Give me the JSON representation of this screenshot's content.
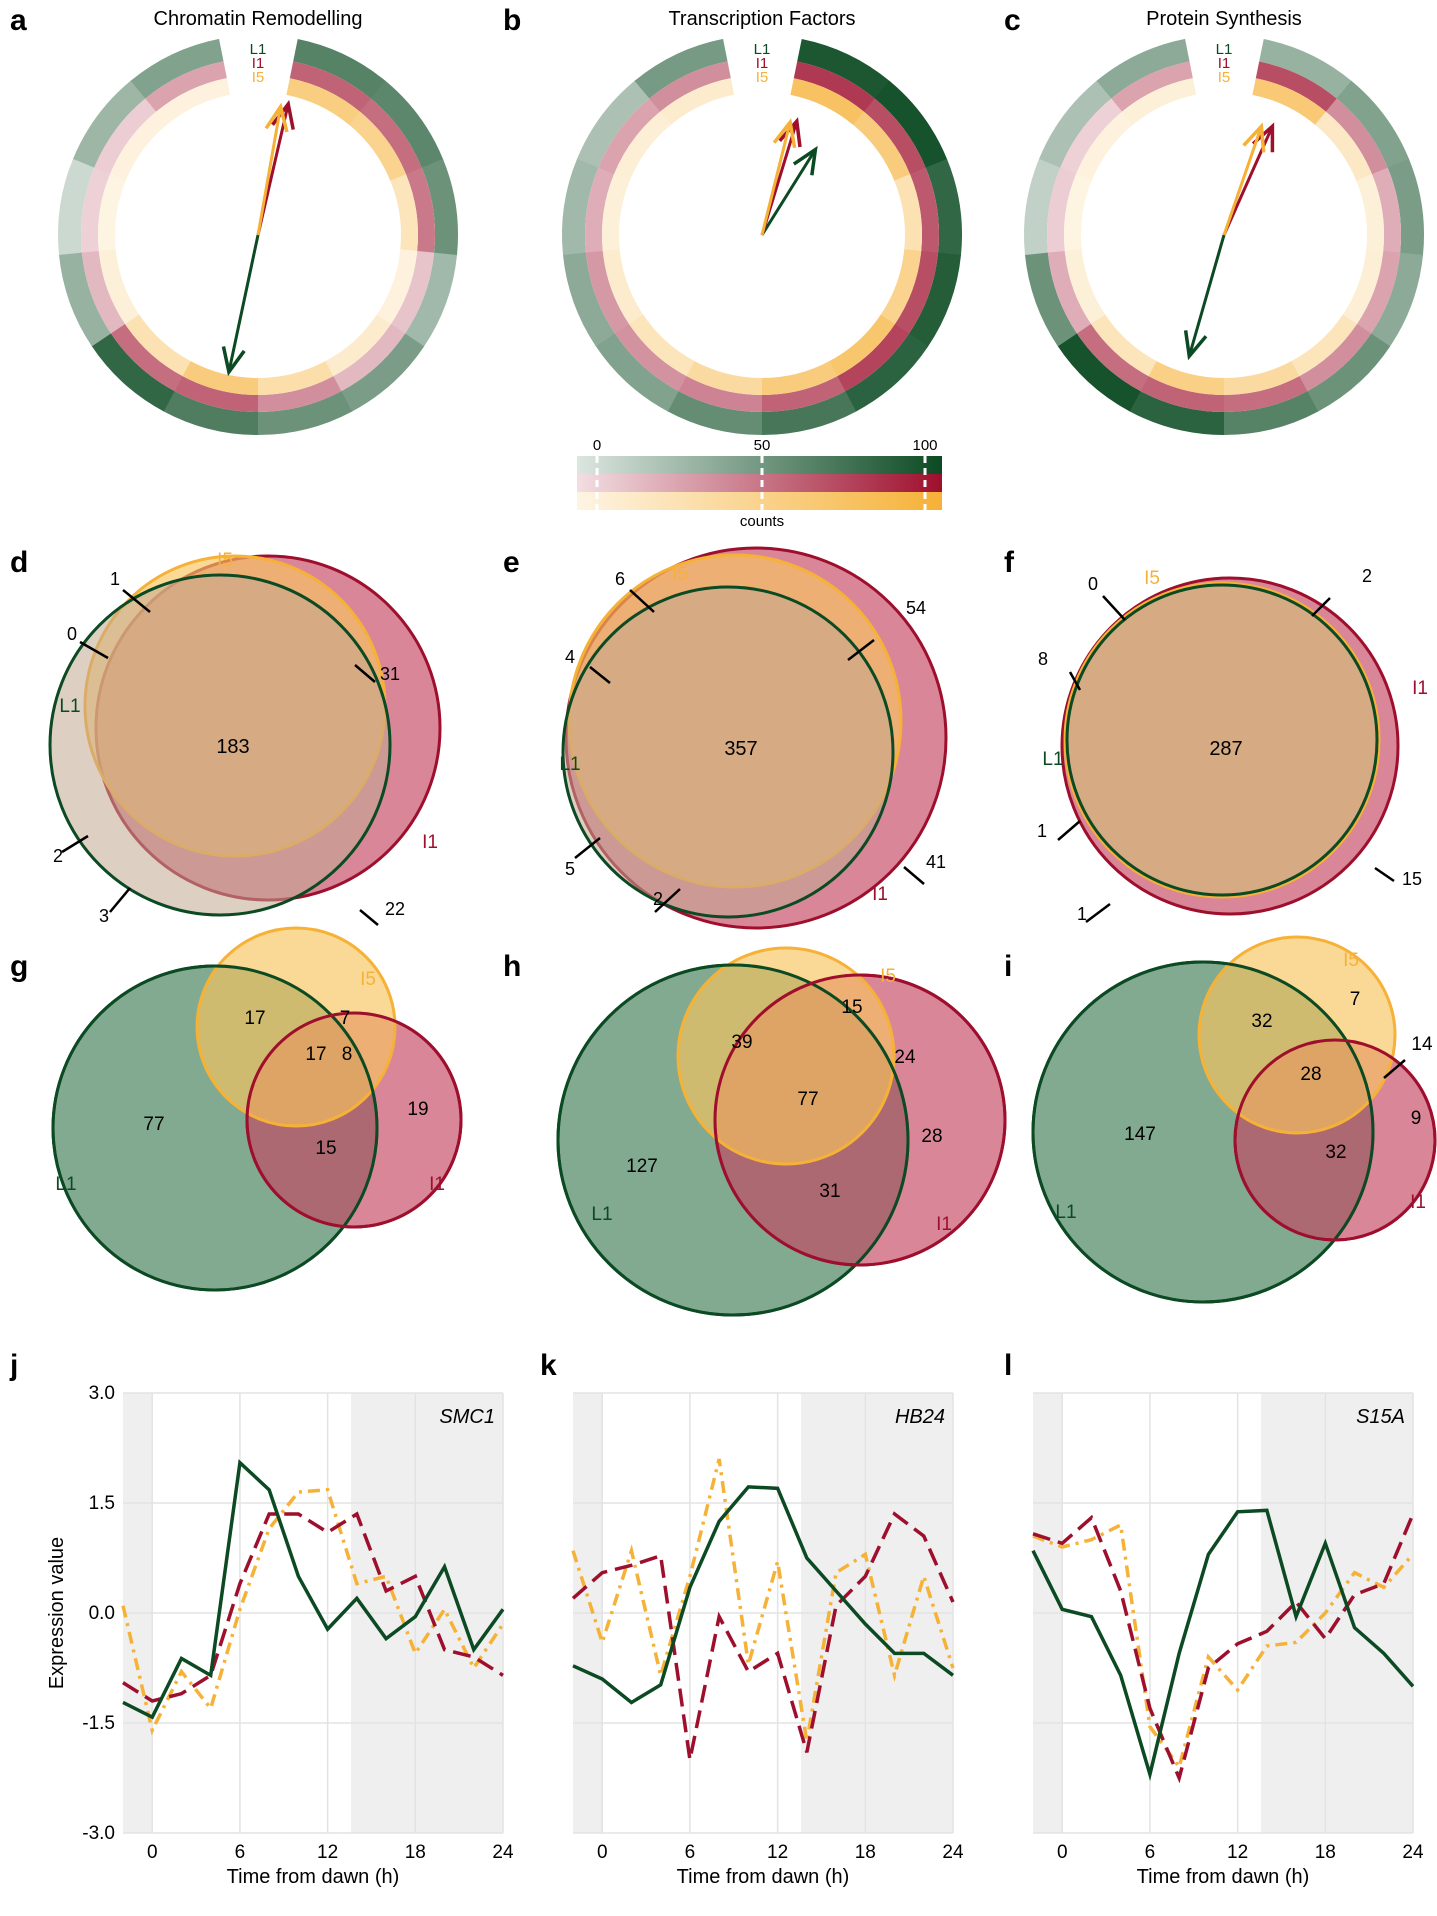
{
  "colors": {
    "L1": "#0b4a22",
    "I1": "#9e0f2d",
    "I5": "#f6b137",
    "L1_fill": "#3c7a52",
    "I1_fill": "#c44661",
    "I5_fill": "#f8c864"
  },
  "panels": {
    "a": {
      "letter": "a",
      "title": "Chromatin Remodelling"
    },
    "b": {
      "letter": "b",
      "title": "Transcription Factors"
    },
    "c": {
      "letter": "c",
      "title": "Protein Synthesis"
    },
    "d": {
      "letter": "d"
    },
    "e": {
      "letter": "e"
    },
    "f": {
      "letter": "f"
    },
    "g": {
      "letter": "g"
    },
    "h": {
      "letter": "h"
    },
    "i": {
      "letter": "i"
    },
    "j": {
      "letter": "j"
    },
    "k": {
      "letter": "k"
    },
    "l": {
      "letter": "l"
    }
  },
  "ring_labels": [
    "L1",
    "I1",
    "I5"
  ],
  "colorbar": {
    "ticks": [
      "0",
      "50",
      "100"
    ],
    "label": "counts"
  },
  "chart_data": [
    {
      "type": "polar-ring",
      "panel": "a",
      "title": "Chromatin Remodelling",
      "rings": [
        "L1",
        "I1",
        "I5"
      ],
      "segments_per_ring": 12,
      "counts": {
        "L1": [
          65,
          62,
          55,
          30,
          48,
          55,
          68,
          82,
          35,
          10,
          32,
          45
        ],
        "I1": [
          60,
          55,
          50,
          15,
          20,
          40,
          60,
          55,
          20,
          8,
          10,
          30
        ],
        "I5": [
          58,
          50,
          25,
          5,
          15,
          35,
          60,
          30,
          8,
          3,
          5,
          5
        ]
      },
      "vectors": [
        {
          "series": "L1",
          "angle_deg": 192,
          "length": 1.0
        },
        {
          "series": "I1",
          "angle_deg": 13,
          "length": 0.96
        },
        {
          "series": "I5",
          "angle_deg": 10,
          "length": 0.93
        }
      ]
    },
    {
      "type": "polar-ring",
      "panel": "b",
      "title": "Transcription Factors",
      "rings": [
        "L1",
        "I1",
        "I5"
      ],
      "segments_per_ring": 12,
      "counts": {
        "L1": [
          92,
          95,
          82,
          88,
          85,
          72,
          58,
          45,
          40,
          30,
          25,
          50
        ],
        "I1": [
          80,
          70,
          65,
          70,
          75,
          60,
          45,
          38,
          35,
          25,
          30,
          40
        ],
        "I5": [
          75,
          60,
          30,
          50,
          70,
          60,
          40,
          25,
          15,
          8,
          10,
          15
        ]
      },
      "vectors": [
        {
          "series": "L1",
          "angle_deg": 32,
          "length": 0.72
        },
        {
          "series": "I1",
          "angle_deg": 17,
          "length": 0.85
        },
        {
          "series": "I5",
          "angle_deg": 14,
          "length": 0.83
        }
      ]
    },
    {
      "type": "polar-ring",
      "panel": "c",
      "title": "Protein Synthesis",
      "rings": [
        "L1",
        "I1",
        "I5"
      ],
      "segments_per_ring": 12,
      "counts": {
        "L1": [
          35,
          45,
          48,
          40,
          55,
          65,
          85,
          95,
          55,
          15,
          25,
          40
        ],
        "I1": [
          70,
          40,
          25,
          30,
          40,
          55,
          60,
          55,
          25,
          10,
          8,
          30
        ],
        "I5": [
          65,
          20,
          8,
          10,
          25,
          40,
          55,
          25,
          8,
          3,
          5,
          8
        ]
      },
      "vectors": [
        {
          "series": "L1",
          "angle_deg": 196,
          "length": 0.9
        },
        {
          "series": "I1",
          "angle_deg": 24,
          "length": 0.85
        },
        {
          "series": "I5",
          "angle_deg": 19,
          "length": 0.82
        }
      ]
    },
    {
      "type": "venn-proportional",
      "panel": "d",
      "sets": [
        "L1",
        "I1",
        "I5"
      ],
      "center": "183",
      "region_labels": [
        "1",
        "0",
        "31",
        "2",
        "3",
        "22"
      ],
      "set_labels": [
        "L1",
        "I1",
        "I5"
      ]
    },
    {
      "type": "venn-proportional",
      "panel": "e",
      "sets": [
        "L1",
        "I1",
        "I5"
      ],
      "center": "357",
      "region_labels": [
        "6",
        "54",
        "4",
        "5",
        "41",
        "2"
      ],
      "set_labels": [
        "L1",
        "I1",
        "I5"
      ]
    },
    {
      "type": "venn-proportional",
      "panel": "f",
      "sets": [
        "L1",
        "I1",
        "I5"
      ],
      "center": "287",
      "region_labels": [
        "0",
        "8",
        "2",
        "1",
        "15",
        "1"
      ],
      "set_labels": [
        "L1",
        "I1",
        "I5"
      ]
    },
    {
      "type": "venn",
      "panel": "g",
      "sets": [
        "L1",
        "I1",
        "I5"
      ],
      "regions": {
        "L1_only": "77",
        "L1_I5": "17",
        "I5_only": "7",
        "I5_I1": "8",
        "all": "17",
        "L1_I1": "15",
        "I1_only": "19"
      }
    },
    {
      "type": "venn",
      "panel": "h",
      "sets": [
        "L1",
        "I1",
        "I5"
      ],
      "regions": {
        "L1_only": "127",
        "L1_I5": "39",
        "I5_only": "15",
        "I5_I1": "24",
        "all": "77",
        "L1_I1": "31",
        "I1_only": "28"
      }
    },
    {
      "type": "venn",
      "panel": "i",
      "sets": [
        "L1",
        "I1",
        "I5"
      ],
      "regions": {
        "L1_only": "147",
        "L1_I5": "32",
        "I5_only": "7",
        "I5_I1": "14",
        "all": "28",
        "L1_I1": "32",
        "I1_only": "9"
      }
    },
    {
      "type": "line",
      "panel": "j",
      "gene": "SMC1",
      "xlabel": "Time from dawn (h)",
      "ylabel": "Expression value",
      "xticks": [
        "0",
        "6",
        "12",
        "18",
        "24"
      ],
      "yticks": [
        "3.0",
        "1.5",
        "0.0",
        "-1.5",
        "-3.0"
      ],
      "xlim": [
        -2,
        24
      ],
      "ylim": [
        -3,
        3
      ],
      "shaded_x": [
        [
          -2,
          0
        ],
        [
          13.6,
          24
        ]
      ],
      "series": [
        {
          "name": "L1",
          "x": [
            -2,
            0,
            2,
            4,
            6,
            8,
            10,
            12,
            14,
            16,
            18,
            20,
            22,
            24
          ],
          "values": [
            -1.22,
            -1.42,
            -0.62,
            -0.85,
            2.05,
            1.68,
            0.5,
            -0.22,
            0.2,
            -0.35,
            -0.05,
            0.63,
            -0.5,
            0.05
          ]
        },
        {
          "name": "I1",
          "x": [
            -2,
            0,
            2,
            4,
            6,
            8,
            10,
            12,
            14,
            16,
            18,
            20,
            22,
            24
          ],
          "values": [
            -0.95,
            -1.2,
            -1.1,
            -0.85,
            0.4,
            1.35,
            1.35,
            1.1,
            1.35,
            0.3,
            0.5,
            -0.5,
            -0.6,
            -0.85
          ]
        },
        {
          "name": "I5",
          "x": [
            -2,
            0,
            2,
            4,
            6,
            8,
            10,
            12,
            14,
            16,
            18,
            20,
            22,
            24
          ],
          "values": [
            0.1,
            -1.6,
            -0.8,
            -1.3,
            0.05,
            1.15,
            1.65,
            1.68,
            0.4,
            0.5,
            -0.55,
            0.05,
            -0.75,
            -0.15
          ]
        }
      ]
    },
    {
      "type": "line",
      "panel": "k",
      "gene": "HB24",
      "xlabel": "Time from dawn (h)",
      "ylabel": "",
      "xticks": [
        "0",
        "6",
        "12",
        "18",
        "24"
      ],
      "xlim": [
        -2,
        24
      ],
      "ylim": [
        -3,
        3
      ],
      "shaded_x": [
        [
          -2,
          0
        ],
        [
          13.6,
          24
        ]
      ],
      "series": [
        {
          "name": "L1",
          "x": [
            -2,
            0,
            2,
            4,
            6,
            8,
            10,
            12,
            14,
            16,
            18,
            20,
            22,
            24
          ],
          "values": [
            -0.72,
            -0.9,
            -1.22,
            -0.98,
            0.35,
            1.25,
            1.72,
            1.7,
            0.75,
            0.3,
            -0.15,
            -0.55,
            -0.55,
            -0.85
          ]
        },
        {
          "name": "I1",
          "x": [
            -2,
            0,
            2,
            4,
            6,
            8,
            10,
            12,
            14,
            16,
            18,
            20,
            22,
            24
          ],
          "values": [
            0.2,
            0.55,
            0.65,
            0.78,
            -2.0,
            -0.05,
            -0.8,
            -0.55,
            -1.9,
            0.1,
            0.5,
            1.35,
            1.05,
            0.15
          ]
        },
        {
          "name": "I5",
          "x": [
            -2,
            0,
            2,
            4,
            6,
            8,
            10,
            12,
            14,
            16,
            18,
            20,
            22,
            24
          ],
          "values": [
            0.85,
            -0.4,
            0.85,
            -0.85,
            0.5,
            2.1,
            -0.7,
            0.7,
            -1.75,
            0.55,
            0.8,
            -0.85,
            0.5,
            -0.75
          ]
        }
      ]
    },
    {
      "type": "line",
      "panel": "l",
      "gene": "S15A",
      "xlabel": "Time from dawn (h)",
      "ylabel": "",
      "xticks": [
        "0",
        "6",
        "12",
        "18",
        "24"
      ],
      "xlim": [
        -2,
        24
      ],
      "ylim": [
        -3,
        3
      ],
      "shaded_x": [
        [
          -2,
          0
        ],
        [
          13.6,
          24
        ]
      ],
      "series": [
        {
          "name": "L1",
          "x": [
            -2,
            0,
            2,
            4,
            6,
            8,
            10,
            12,
            14,
            16,
            18,
            20,
            22,
            24
          ],
          "values": [
            0.85,
            0.05,
            -0.05,
            -0.85,
            -2.2,
            -0.55,
            0.8,
            1.38,
            1.4,
            -0.05,
            0.95,
            -0.2,
            -0.55,
            -1.0
          ]
        },
        {
          "name": "I1",
          "x": [
            -2,
            0,
            2,
            4,
            6,
            8,
            10,
            12,
            14,
            16,
            18,
            20,
            22,
            24
          ],
          "values": [
            1.08,
            0.95,
            1.3,
            0.3,
            -1.3,
            -2.25,
            -0.75,
            -0.42,
            -0.25,
            0.15,
            -0.35,
            0.25,
            0.4,
            1.35
          ]
        },
        {
          "name": "I5",
          "x": [
            -2,
            0,
            2,
            4,
            6,
            8,
            10,
            12,
            14,
            16,
            18,
            20,
            22,
            24
          ],
          "values": [
            1.05,
            0.9,
            1.0,
            1.2,
            -1.55,
            -2.1,
            -0.6,
            -1.05,
            -0.45,
            -0.4,
            0.0,
            0.55,
            0.35,
            0.8
          ]
        }
      ]
    }
  ]
}
